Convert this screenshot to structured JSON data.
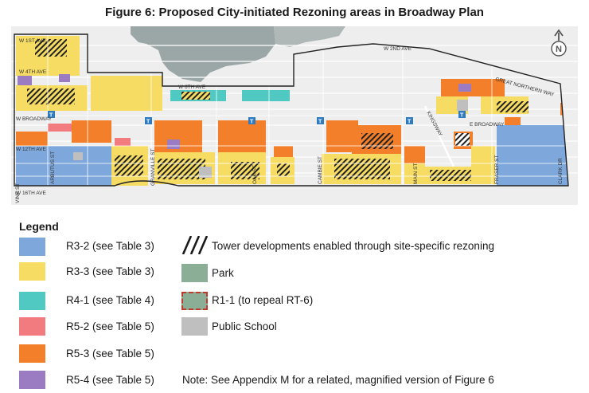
{
  "title": "Figure 6: Proposed City-initiated Rezoning areas in Broadway Plan",
  "colors": {
    "r3_2": "#7ea8dc",
    "r3_3": "#f7dc63",
    "r4_1": "#4fc9c1",
    "r5_2": "#f27b80",
    "r5_3": "#f47f2a",
    "r5_4": "#9b7bc2",
    "park": "#8bae97",
    "school": "#bfbfbf",
    "water": "#9aa7a6",
    "transit": "#2f7bbf",
    "boundary": "#222222"
  },
  "map": {
    "north_label": "N",
    "transit_marker": "T",
    "streets": {
      "w1st": "W 1ST AVE",
      "w2nd": "W 2ND AVE",
      "w4th": "W 4TH AVE",
      "w6th": "W 6TH AVE",
      "wbroadway": "W BROADWAY",
      "w12th": "W 12TH AVE",
      "w16th": "W 16TH AVE",
      "ebroadway": "E BROADWAY",
      "great_northern": "GREAT NORTHERN WAY",
      "kingsway": "KINGSWAY",
      "vine": "VINE ST",
      "arbutus": "ARBUTUS ST",
      "granville": "GRANVILLE ST",
      "oak": "OAK ST",
      "cambie": "CAMBIE ST",
      "main": "MAIN ST",
      "fraser": "FRASER ST",
      "clark": "CLARK DR"
    }
  },
  "legend": {
    "heading": "Legend",
    "items": [
      {
        "label": "R3-2 (see Table 3)"
      },
      {
        "label": "R3-3 (see Table 3)"
      },
      {
        "label": "R4-1 (see Table 4)"
      },
      {
        "label": "R5-2 (see Table 5)"
      },
      {
        "label": "R5-3 (see Table 5)"
      },
      {
        "label": "R5-4 (see Table 5)"
      },
      {
        "label": "Tower developments enabled through site-specific rezoning"
      },
      {
        "label": "Park"
      },
      {
        "label": "R1-1 (to repeal RT-6)"
      },
      {
        "label": "Public School"
      }
    ],
    "note": "Note: See Appendix M for a related, magnified version of Figure 6"
  }
}
